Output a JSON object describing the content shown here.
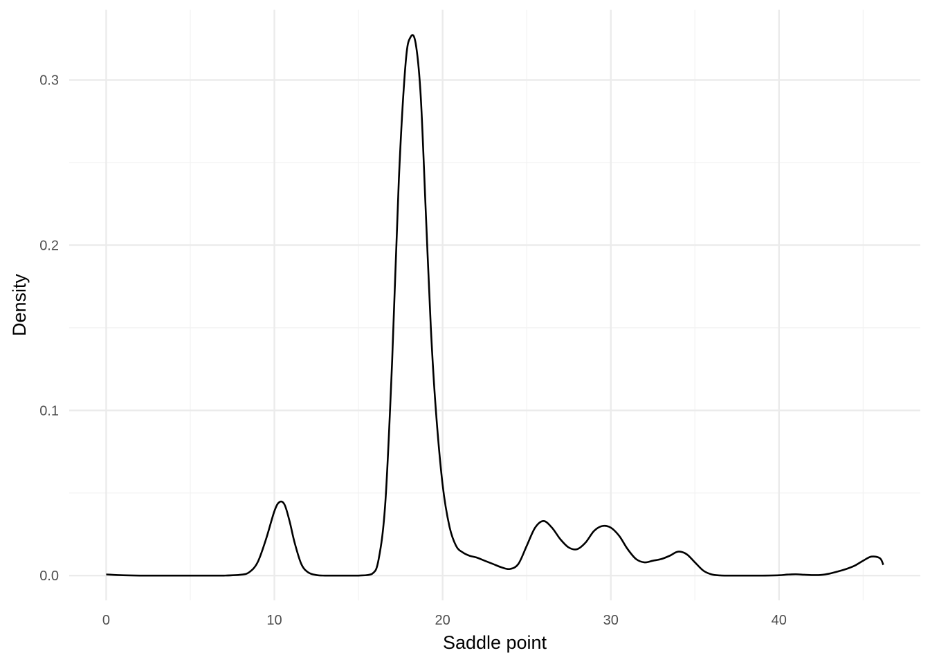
{
  "chart_data": {
    "type": "line",
    "title": "",
    "xlabel": "Saddle point",
    "ylabel": "Density",
    "xlim": [
      -2.2,
      48.4
    ],
    "ylim": [
      -0.015,
      0.3425
    ],
    "x_ticks": [
      0,
      10,
      20,
      30,
      40
    ],
    "x_tick_labels": [
      "0",
      "10",
      "20",
      "30",
      "40"
    ],
    "x_minor_ticks": [
      5,
      15,
      25,
      35,
      45
    ],
    "y_ticks": [
      0.0,
      0.1,
      0.2,
      0.3
    ],
    "y_tick_labels": [
      "0.0",
      "0.1",
      "0.2",
      "0.3"
    ],
    "y_minor_ticks": [
      0.05,
      0.15,
      0.25
    ],
    "grid": true,
    "legend": "none",
    "colors": {
      "line": "#000000",
      "grid_major": "#ebebeb",
      "grid_minor": "#f2f2f2",
      "background": "#ffffff"
    },
    "series": [
      {
        "x": [
          0,
          1,
          2,
          3,
          4,
          5,
          6,
          7,
          8,
          8.5,
          9,
          9.5,
          10,
          10.3,
          10.6,
          10.9,
          11.2,
          11.6,
          12,
          12.5,
          13,
          14,
          15,
          15.8,
          16.2,
          16.6,
          17,
          17.4,
          17.8,
          18.1,
          18.4,
          18.7,
          19,
          19.3,
          19.6,
          20,
          20.4,
          20.8,
          21.2,
          21.6,
          22,
          22.5,
          23,
          23.5,
          24,
          24.5,
          25,
          25.5,
          26,
          26.5,
          27,
          27.5,
          28,
          28.5,
          29,
          29.5,
          30,
          30.5,
          31,
          31.5,
          32,
          32.5,
          33,
          33.5,
          34,
          34.5,
          35,
          35.5,
          36,
          36.5,
          37,
          38,
          39,
          40,
          40.5,
          41,
          41.5,
          42,
          42.5,
          43,
          43.5,
          44,
          44.5,
          45,
          45.5,
          46,
          46.2
        ],
        "y": [
          0.0007,
          0.0002,
          0.0,
          0.0,
          0.0,
          0.0,
          0.0,
          0.0,
          0.0005,
          0.002,
          0.008,
          0.022,
          0.039,
          0.0445,
          0.043,
          0.033,
          0.02,
          0.007,
          0.002,
          0.0003,
          0.0,
          0.0,
          0.0,
          0.001,
          0.01,
          0.045,
          0.13,
          0.24,
          0.31,
          0.326,
          0.322,
          0.29,
          0.22,
          0.15,
          0.1,
          0.055,
          0.03,
          0.018,
          0.014,
          0.012,
          0.011,
          0.009,
          0.007,
          0.005,
          0.004,
          0.007,
          0.018,
          0.029,
          0.033,
          0.029,
          0.022,
          0.017,
          0.016,
          0.02,
          0.027,
          0.03,
          0.029,
          0.024,
          0.016,
          0.01,
          0.008,
          0.009,
          0.01,
          0.012,
          0.0145,
          0.013,
          0.008,
          0.003,
          0.0007,
          0.0001,
          0.0,
          0.0,
          0.0,
          0.0002,
          0.0006,
          0.0008,
          0.0005,
          0.0003,
          0.0004,
          0.0012,
          0.0025,
          0.004,
          0.006,
          0.009,
          0.0115,
          0.0105,
          0.0065
        ]
      }
    ]
  }
}
